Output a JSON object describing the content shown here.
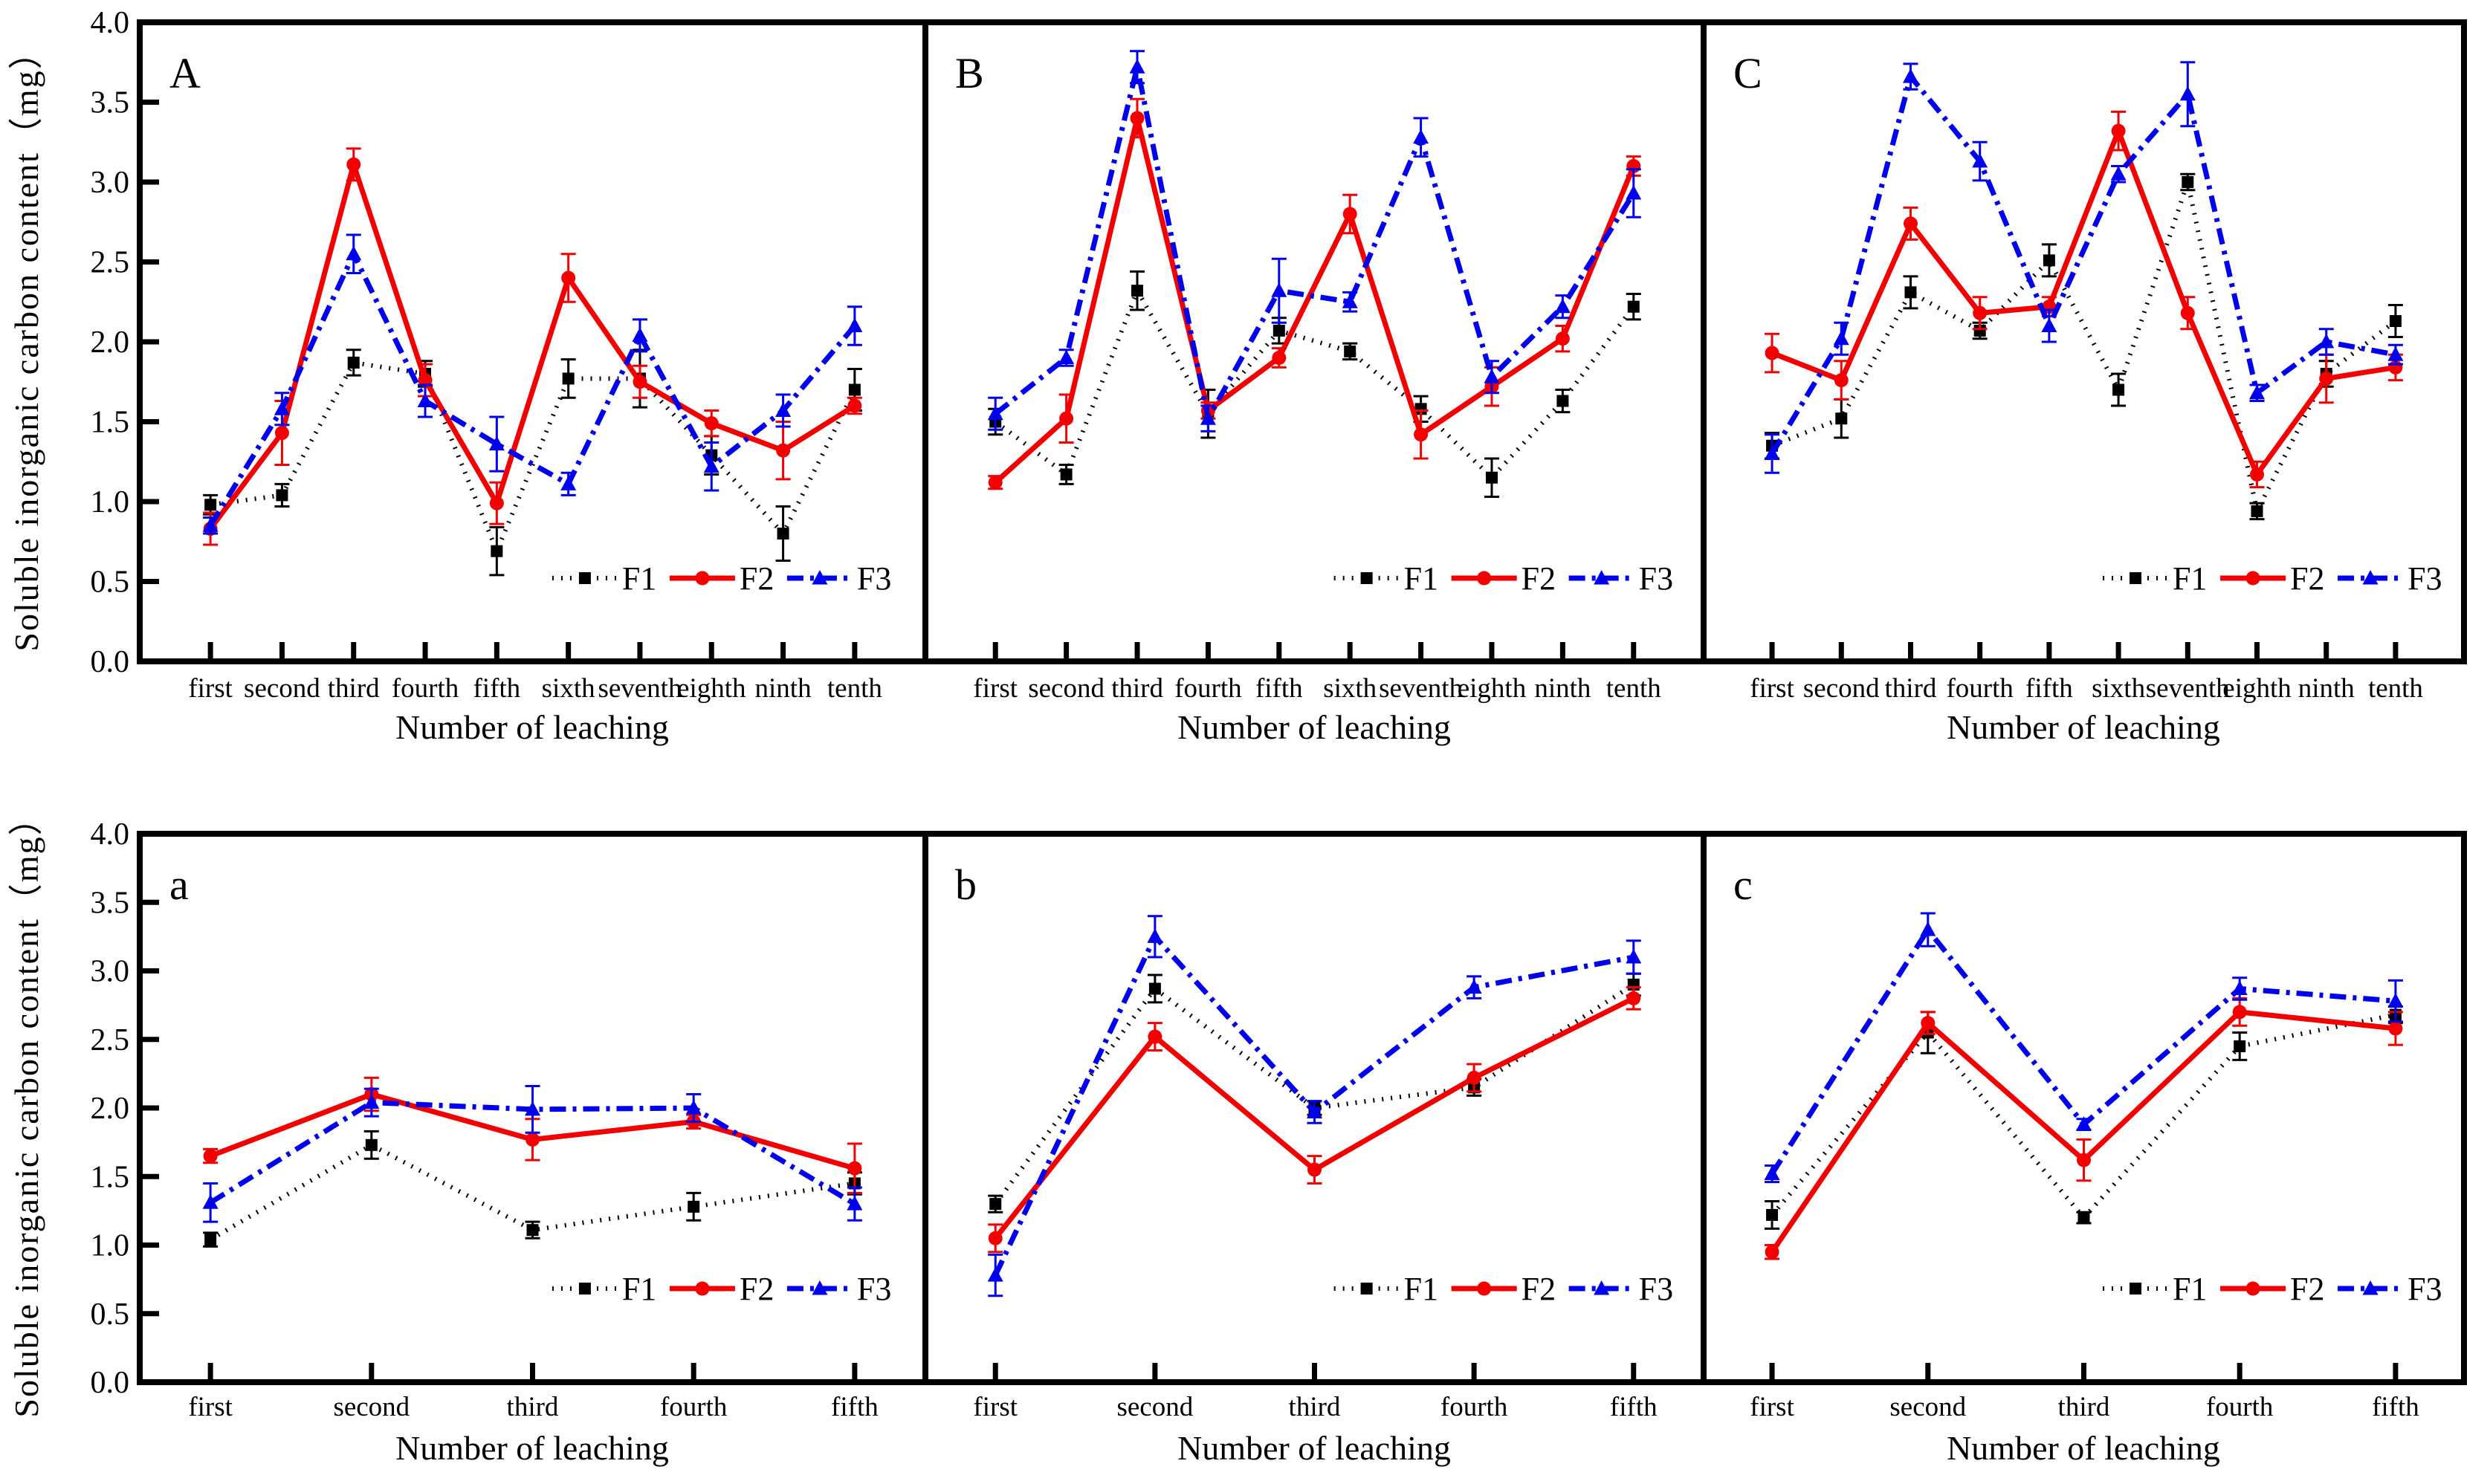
{
  "figure": {
    "ylabel": "Soluble inorganic carbon content（mg）",
    "xlabel": "Number of leaching",
    "legend_labels": [
      "F1",
      "F2",
      "F3"
    ],
    "series_colors": {
      "F1": "#000000",
      "F2": "#f50000",
      "F3": "#0000f0"
    },
    "series_styles": {
      "F1": {
        "marker": "square",
        "dash": "dotted"
      },
      "F2": {
        "marker": "circle",
        "dash": "solid"
      },
      "F3": {
        "marker": "triangle",
        "dash": "dashdot"
      }
    },
    "ylim": [
      0.0,
      4.0
    ],
    "ytick_step": 0.5,
    "grid": false,
    "legend_position": "inside-lower-right"
  },
  "chart_data": [
    {
      "type": "line",
      "panel_label": "A",
      "categories": [
        "first",
        "second",
        "third",
        "fourth",
        "fifth",
        "sixth",
        "seventh",
        "eighth",
        "ninth",
        "tenth"
      ],
      "series": [
        {
          "name": "F1",
          "values": [
            0.98,
            1.04,
            1.87,
            1.8,
            0.69,
            1.77,
            1.77,
            1.29,
            0.8,
            1.7
          ],
          "errors": [
            0.06,
            0.07,
            0.08,
            0.08,
            0.15,
            0.12,
            0.18,
            0.12,
            0.17,
            0.13
          ]
        },
        {
          "name": "F2",
          "values": [
            0.83,
            1.43,
            3.11,
            1.76,
            0.99,
            2.4,
            1.75,
            1.49,
            1.32,
            1.6
          ],
          "errors": [
            0.1,
            0.2,
            0.1,
            0.1,
            0.13,
            0.15,
            0.1,
            0.08,
            0.18,
            0.05
          ]
        },
        {
          "name": "F3",
          "values": [
            0.85,
            1.58,
            2.55,
            1.63,
            1.36,
            1.11,
            2.04,
            1.22,
            1.57,
            2.1
          ],
          "errors": [
            0.05,
            0.1,
            0.12,
            0.1,
            0.17,
            0.07,
            0.1,
            0.15,
            0.1,
            0.12
          ]
        }
      ]
    },
    {
      "type": "line",
      "panel_label": "B",
      "categories": [
        "first",
        "second",
        "third",
        "fourth",
        "fifth",
        "sixth",
        "seventh",
        "eighth",
        "ninth",
        "tenth"
      ],
      "series": [
        {
          "name": "F1",
          "values": [
            1.5,
            1.17,
            2.32,
            1.55,
            2.07,
            1.94,
            1.58,
            1.15,
            1.63,
            2.22
          ],
          "errors": [
            0.08,
            0.06,
            0.12,
            0.15,
            0.08,
            0.05,
            0.08,
            0.12,
            0.07,
            0.08
          ]
        },
        {
          "name": "F2",
          "values": [
            1.12,
            1.52,
            3.4,
            1.57,
            1.9,
            2.8,
            1.42,
            1.72,
            2.02,
            3.1
          ],
          "errors": [
            0.04,
            0.15,
            0.12,
            0.05,
            0.06,
            0.12,
            0.15,
            0.12,
            0.08,
            0.06
          ]
        },
        {
          "name": "F3",
          "values": [
            1.55,
            1.9,
            3.72,
            1.52,
            2.32,
            2.25,
            3.28,
            1.78,
            2.22,
            2.93
          ],
          "errors": [
            0.1,
            0.05,
            0.1,
            0.08,
            0.2,
            0.06,
            0.12,
            0.1,
            0.07,
            0.15
          ]
        }
      ]
    },
    {
      "type": "line",
      "panel_label": "C",
      "categories": [
        "first",
        "second",
        "third",
        "fourth",
        "fifth",
        "sixth",
        "seventh",
        "eighth",
        "ninth",
        "tenth"
      ],
      "series": [
        {
          "name": "F1",
          "values": [
            1.35,
            1.52,
            2.31,
            2.07,
            2.51,
            1.7,
            3.0,
            0.94,
            1.8,
            2.13
          ],
          "errors": [
            0.08,
            0.12,
            0.1,
            0.05,
            0.1,
            0.1,
            0.05,
            0.05,
            0.08,
            0.1
          ]
        },
        {
          "name": "F2",
          "values": [
            1.93,
            1.76,
            2.74,
            2.18,
            2.22,
            3.32,
            2.18,
            1.17,
            1.77,
            1.84
          ],
          "errors": [
            0.12,
            0.12,
            0.1,
            0.1,
            0.06,
            0.12,
            0.1,
            0.08,
            0.15,
            0.08
          ]
        },
        {
          "name": "F3",
          "values": [
            1.3,
            2.02,
            3.66,
            3.13,
            2.1,
            3.05,
            3.55,
            1.68,
            2.0,
            1.92
          ],
          "errors": [
            0.12,
            0.1,
            0.08,
            0.12,
            0.1,
            0.05,
            0.2,
            0.05,
            0.08,
            0.06
          ]
        }
      ]
    },
    {
      "type": "line",
      "panel_label": "a",
      "categories": [
        "first",
        "second",
        "third",
        "fourth",
        "fifth"
      ],
      "series": [
        {
          "name": "F1",
          "values": [
            1.04,
            1.73,
            1.11,
            1.28,
            1.45
          ],
          "errors": [
            0.05,
            0.1,
            0.06,
            0.1,
            0.08
          ]
        },
        {
          "name": "F2",
          "values": [
            1.65,
            2.1,
            1.77,
            1.9,
            1.56
          ],
          "errors": [
            0.05,
            0.12,
            0.15,
            0.05,
            0.18
          ]
        },
        {
          "name": "F3",
          "values": [
            1.31,
            2.04,
            1.99,
            2.0,
            1.3
          ],
          "errors": [
            0.14,
            0.1,
            0.17,
            0.1,
            0.12
          ]
        }
      ]
    },
    {
      "type": "line",
      "panel_label": "b",
      "categories": [
        "first",
        "second",
        "third",
        "fourth",
        "fifth"
      ],
      "series": [
        {
          "name": "F1",
          "values": [
            1.3,
            2.87,
            2.0,
            2.15,
            2.9
          ],
          "errors": [
            0.06,
            0.1,
            0.05,
            0.06,
            0.08
          ]
        },
        {
          "name": "F2",
          "values": [
            1.05,
            2.52,
            1.55,
            2.22,
            2.8
          ],
          "errors": [
            0.1,
            0.1,
            0.1,
            0.1,
            0.08
          ]
        },
        {
          "name": "F3",
          "values": [
            0.78,
            3.25,
            1.97,
            2.88,
            3.1
          ],
          "errors": [
            0.15,
            0.15,
            0.08,
            0.08,
            0.12
          ]
        }
      ]
    },
    {
      "type": "line",
      "panel_label": "c",
      "categories": [
        "first",
        "second",
        "third",
        "fourth",
        "fifth"
      ],
      "series": [
        {
          "name": "F1",
          "values": [
            1.22,
            2.55,
            1.2,
            2.45,
            2.68
          ],
          "errors": [
            0.1,
            0.15,
            0.04,
            0.1,
            0.06
          ]
        },
        {
          "name": "F2",
          "values": [
            0.95,
            2.62,
            1.62,
            2.7,
            2.58
          ],
          "errors": [
            0.05,
            0.08,
            0.15,
            0.1,
            0.12
          ]
        },
        {
          "name": "F3",
          "values": [
            1.52,
            3.3,
            1.88,
            2.87,
            2.78
          ],
          "errors": [
            0.06,
            0.12,
            0.04,
            0.08,
            0.15
          ]
        }
      ]
    }
  ]
}
